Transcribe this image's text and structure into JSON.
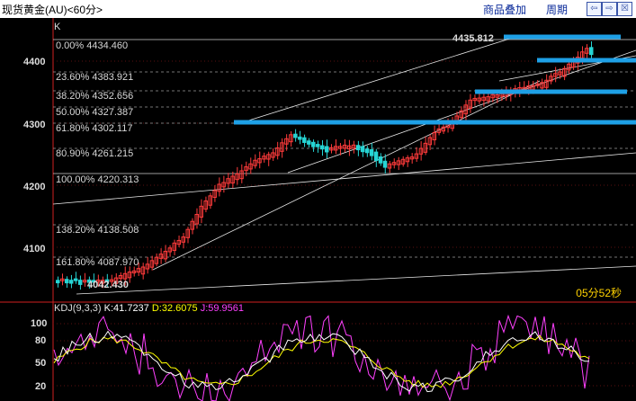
{
  "window": {
    "title": "现货黄金(AU)<60分>",
    "menu": [
      "商品叠加",
      "周期"
    ],
    "nav_buttons": [
      "⇦",
      "⇨",
      "☒"
    ]
  },
  "main_panel": {
    "label": "K",
    "y_axis_ticks": [
      "4400",
      "4300",
      "4200",
      "4100"
    ],
    "fib_levels": [
      {
        "pct": "0.00%",
        "price": "4434.460"
      },
      {
        "pct": "23.60%",
        "price": "4383.921"
      },
      {
        "pct": "38.20%",
        "price": "4352.656"
      },
      {
        "pct": "50.00%",
        "price": "4327.387"
      },
      {
        "pct": "61.80%",
        "price": "4302.117"
      },
      {
        "pct": "80.90%",
        "price": "4261.215"
      },
      {
        "pct": "100.00%",
        "price": "4220.313"
      },
      {
        "pct": "138.20%",
        "price": "4138.508"
      },
      {
        "pct": "161.80%",
        "price": "4087.970"
      }
    ],
    "high_label": "4435.812",
    "low_label": "4042.430",
    "countdown": "05分52秒"
  },
  "kdj_panel": {
    "name": "KDJ(9,3,3)",
    "k": "K:41.7237",
    "d": "D:32.6075",
    "j": "J:59.9561",
    "y_ticks": [
      "100",
      "80",
      "50",
      "20"
    ]
  },
  "colors": {
    "up": "#ff3b3b",
    "down": "#26d4d4",
    "hline": "#1ea0e6",
    "k_line": "#ffffff",
    "d_line": "#ffff00",
    "j_line": "#ff40ff"
  }
}
